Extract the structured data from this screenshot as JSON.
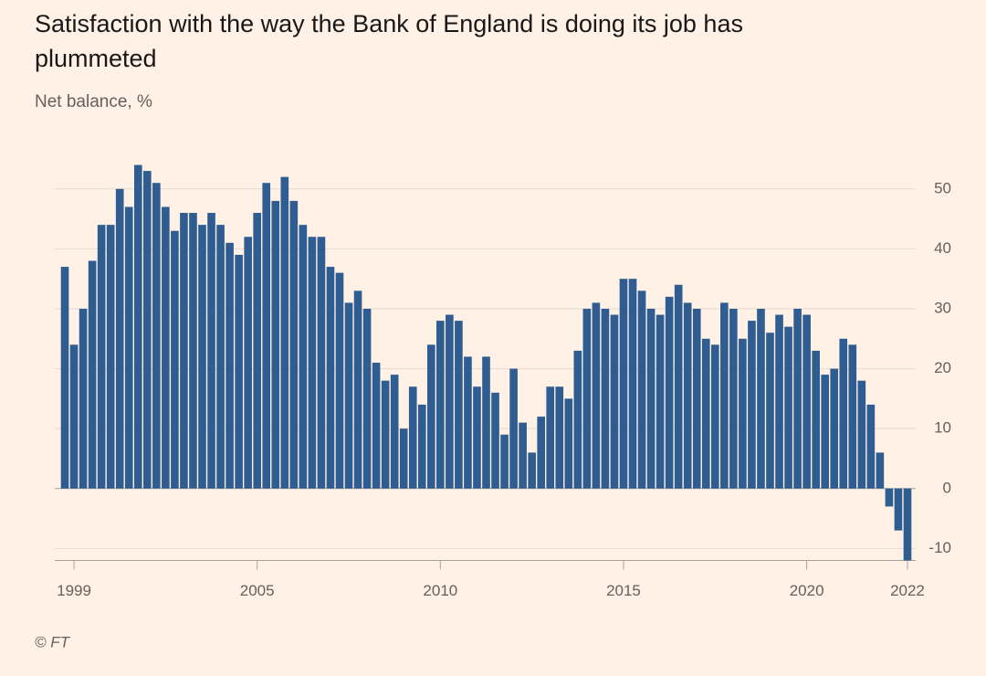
{
  "chart_data": {
    "type": "bar",
    "title": "Satisfaction with the way the Bank of England is doing its job has plummeted",
    "subtitle": "Net balance, %",
    "source": "© FT",
    "categories": [
      null,
      "1999",
      null,
      null,
      null,
      null,
      null,
      null,
      null,
      null,
      null,
      null,
      null,
      null,
      null,
      null,
      null,
      null,
      null,
      null,
      null,
      "2005",
      null,
      null,
      null,
      null,
      null,
      null,
      null,
      null,
      null,
      null,
      null,
      null,
      null,
      null,
      null,
      null,
      null,
      null,
      null,
      "2010",
      null,
      null,
      null,
      null,
      null,
      null,
      null,
      null,
      null,
      null,
      null,
      null,
      null,
      null,
      null,
      null,
      null,
      null,
      null,
      "2015",
      null,
      null,
      null,
      null,
      null,
      null,
      null,
      null,
      null,
      null,
      null,
      null,
      null,
      null,
      null,
      null,
      null,
      null,
      null,
      "2020",
      null,
      null,
      null,
      null,
      null,
      null,
      null,
      null,
      null,
      null,
      "2022"
    ],
    "values": [
      37,
      24,
      30,
      38,
      44,
      44,
      50,
      47,
      54,
      53,
      51,
      47,
      43,
      46,
      46,
      44,
      46,
      44,
      41,
      39,
      42,
      46,
      51,
      48,
      52,
      48,
      44,
      42,
      42,
      37,
      36,
      31,
      33,
      30,
      21,
      18,
      19,
      10,
      17,
      14,
      24,
      28,
      29,
      28,
      22,
      17,
      22,
      16,
      9,
      20,
      11,
      6,
      12,
      17,
      17,
      15,
      23,
      30,
      31,
      30,
      29,
      35,
      35,
      33,
      30,
      29,
      32,
      34,
      31,
      30,
      25,
      24,
      31,
      30,
      25,
      28,
      30,
      26,
      29,
      27,
      30,
      29,
      23,
      19,
      20,
      25,
      24,
      18,
      14,
      6,
      -3,
      -7,
      -12
    ],
    "color": "#2f5d92",
    "ylim": [
      -12,
      55
    ],
    "yticks": [
      -10,
      0,
      10,
      20,
      30,
      40,
      50
    ],
    "grid": true
  }
}
